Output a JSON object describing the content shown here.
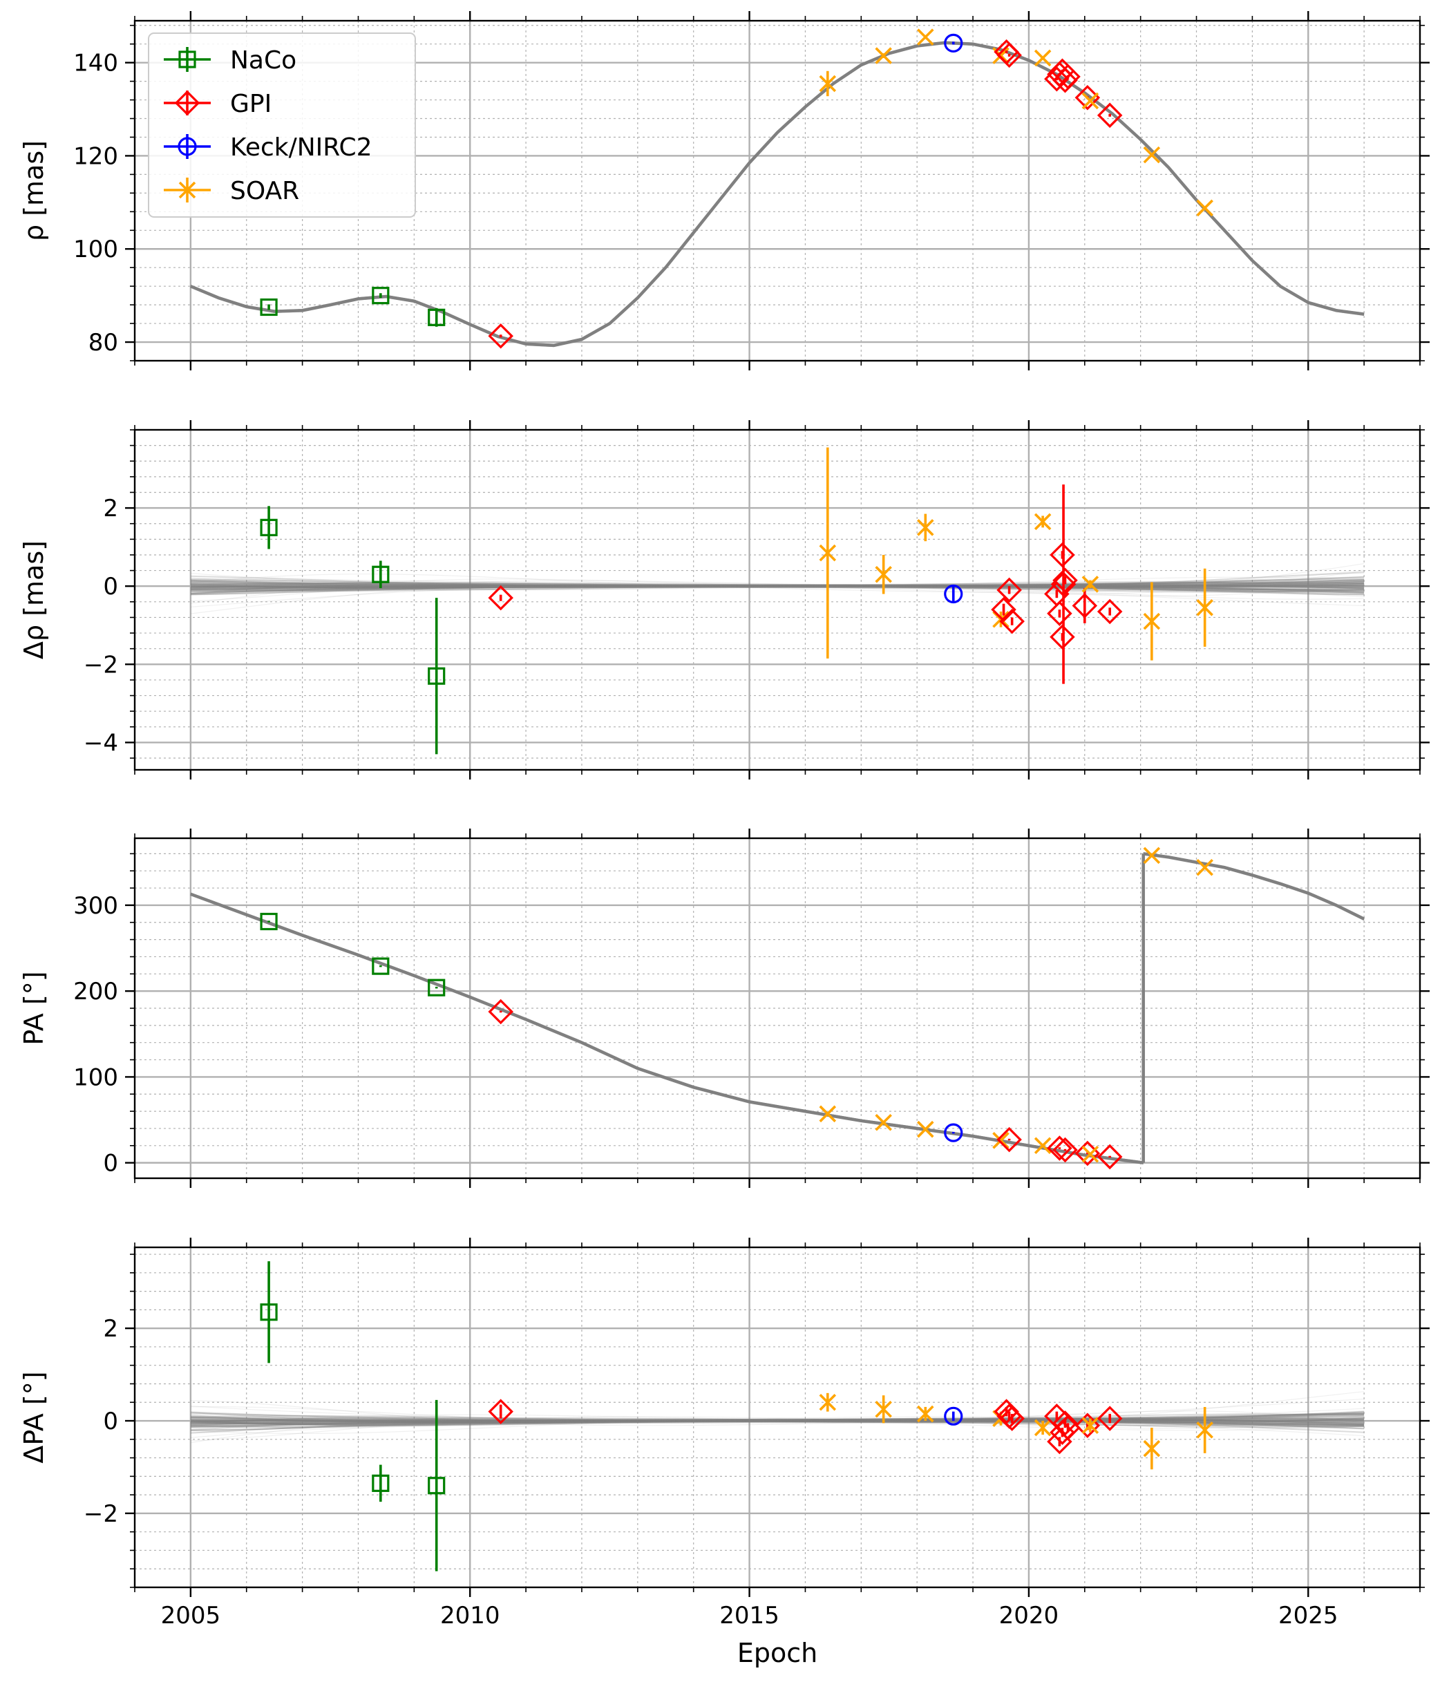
{
  "chart_data": {
    "type": "scatter",
    "xlabel": "Epoch",
    "xlim": [
      2004,
      2027
    ],
    "xticks": [
      2005,
      2010,
      2015,
      2020,
      2025
    ],
    "colors": {
      "NaCo": "#008000",
      "GPI": "#ff0000",
      "Keck/NIRC2": "#0000ff",
      "SOAR": "#ffa500",
      "model": "#808080",
      "grid": "#b0b0b0"
    },
    "legend": {
      "placement": "upper-left of top panel",
      "entries": [
        {
          "name": "NaCo",
          "marker": "square",
          "color": "#008000"
        },
        {
          "name": "GPI",
          "marker": "diamond",
          "color": "#ff0000"
        },
        {
          "name": "Keck/NIRC2",
          "marker": "circle",
          "color": "#0000ff"
        },
        {
          "name": "SOAR",
          "marker": "x",
          "color": "#ffa500"
        }
      ]
    },
    "panels": [
      {
        "id": "rho",
        "ylabel": "ρ [mas]",
        "ylim": [
          76,
          149
        ],
        "yticks": [
          80,
          100,
          120,
          140
        ],
        "model": [
          [
            2005,
            92
          ],
          [
            2005.5,
            89.5
          ],
          [
            2006,
            87.6
          ],
          [
            2006.5,
            86.6
          ],
          [
            2007,
            86.8
          ],
          [
            2007.5,
            88
          ],
          [
            2008,
            89.3
          ],
          [
            2008.5,
            89.8
          ],
          [
            2009,
            88.8
          ],
          [
            2009.5,
            86.5
          ],
          [
            2010,
            83.8
          ],
          [
            2010.5,
            81.2
          ],
          [
            2011,
            79.6
          ],
          [
            2011.5,
            79.3
          ],
          [
            2012,
            80.6
          ],
          [
            2012.5,
            84
          ],
          [
            2013,
            89.5
          ],
          [
            2013.5,
            96
          ],
          [
            2014,
            103.5
          ],
          [
            2014.5,
            111
          ],
          [
            2015,
            118.5
          ],
          [
            2015.5,
            125
          ],
          [
            2016,
            130.5
          ],
          [
            2016.5,
            135.5
          ],
          [
            2017,
            139.5
          ],
          [
            2017.5,
            142
          ],
          [
            2018,
            143.6
          ],
          [
            2018.5,
            144.3
          ],
          [
            2019,
            144
          ],
          [
            2019.5,
            142.8
          ],
          [
            2020,
            140.5
          ],
          [
            2020.5,
            137.5
          ],
          [
            2021,
            133.5
          ],
          [
            2021.5,
            129
          ],
          [
            2022,
            123.5
          ],
          [
            2022.5,
            117.5
          ],
          [
            2023,
            110.5
          ],
          [
            2023.5,
            104
          ],
          [
            2024,
            97.5
          ],
          [
            2024.5,
            92
          ],
          [
            2025,
            88.5
          ],
          [
            2025.5,
            86.8
          ],
          [
            2026,
            86
          ]
        ],
        "points": [
          {
            "inst": "NaCo",
            "x": 2006.4,
            "y": 87.5,
            "err": 0.6
          },
          {
            "inst": "NaCo",
            "x": 2008.4,
            "y": 90,
            "err": 0.5
          },
          {
            "inst": "NaCo",
            "x": 2009.4,
            "y": 85.3,
            "err": 2
          },
          {
            "inst": "GPI",
            "x": 2010.55,
            "y": 81.3,
            "err": 0.3
          },
          {
            "inst": "SOAR",
            "x": 2016.4,
            "y": 135.5,
            "err": 2.7
          },
          {
            "inst": "SOAR",
            "x": 2017.4,
            "y": 141.5,
            "err": 0.5
          },
          {
            "inst": "SOAR",
            "x": 2018.15,
            "y": 145.5,
            "err": 0.4
          },
          {
            "inst": "Keck/NIRC2",
            "x": 2018.65,
            "y": 144.2,
            "err": 0.3
          },
          {
            "inst": "SOAR",
            "x": 2019.5,
            "y": 141.5,
            "err": 0.3
          },
          {
            "inst": "GPI",
            "x": 2019.6,
            "y": 142.3,
            "err": 0.3
          },
          {
            "inst": "GPI",
            "x": 2019.65,
            "y": 141.6,
            "err": 0.3
          },
          {
            "inst": "SOAR",
            "x": 2020.25,
            "y": 141,
            "err": 0.3
          },
          {
            "inst": "GPI",
            "x": 2020.5,
            "y": 136.5,
            "err": 0.3
          },
          {
            "inst": "GPI",
            "x": 2020.55,
            "y": 137.5,
            "err": 0.3
          },
          {
            "inst": "GPI",
            "x": 2020.6,
            "y": 138.2,
            "err": 0.3
          },
          {
            "inst": "GPI",
            "x": 2020.65,
            "y": 136.2,
            "err": 0.3
          },
          {
            "inst": "GPI",
            "x": 2020.7,
            "y": 137,
            "err": 0.3
          },
          {
            "inst": "GPI",
            "x": 2021.05,
            "y": 132.5,
            "err": 0.3
          },
          {
            "inst": "SOAR",
            "x": 2021.1,
            "y": 131.8,
            "err": 0.3
          },
          {
            "inst": "GPI",
            "x": 2021.45,
            "y": 128.7,
            "err": 0.3
          },
          {
            "inst": "SOAR",
            "x": 2022.2,
            "y": 120.2,
            "err": 0.4
          },
          {
            "inst": "SOAR",
            "x": 2023.15,
            "y": 108.8,
            "err": 0.3
          }
        ]
      },
      {
        "id": "drho",
        "ylabel": "Δρ [mas]",
        "ylim": [
          -4.7,
          4
        ],
        "yticks": [
          -4,
          -2,
          0,
          2
        ],
        "residual": true,
        "points": [
          {
            "inst": "NaCo",
            "x": 2006.4,
            "y": 1.5,
            "err": 0.55
          },
          {
            "inst": "NaCo",
            "x": 2008.4,
            "y": 0.3,
            "err": 0.35
          },
          {
            "inst": "NaCo",
            "x": 2009.4,
            "y": -2.3,
            "err": 2
          },
          {
            "inst": "GPI",
            "x": 2010.55,
            "y": -0.3,
            "err": 0.08
          },
          {
            "inst": "SOAR",
            "x": 2016.4,
            "y": 0.85,
            "err": 2.7
          },
          {
            "inst": "SOAR",
            "x": 2017.4,
            "y": 0.3,
            "err": 0.5
          },
          {
            "inst": "SOAR",
            "x": 2018.15,
            "y": 1.5,
            "err": 0.35
          },
          {
            "inst": "Keck/NIRC2",
            "x": 2018.65,
            "y": -0.2,
            "err": 0.2
          },
          {
            "inst": "SOAR",
            "x": 2019.5,
            "y": -0.85,
            "err": 0.2
          },
          {
            "inst": "GPI",
            "x": 2019.55,
            "y": -0.6,
            "err": 0.15
          },
          {
            "inst": "GPI",
            "x": 2019.65,
            "y": -0.1,
            "err": 0.1
          },
          {
            "inst": "GPI",
            "x": 2019.7,
            "y": -0.9,
            "err": 0.1
          },
          {
            "inst": "SOAR",
            "x": 2020.25,
            "y": 1.65,
            "err": 0.15
          },
          {
            "inst": "GPI",
            "x": 2020.5,
            "y": -0.2,
            "err": 0.1
          },
          {
            "inst": "GPI",
            "x": 2020.55,
            "y": -0.7,
            "err": 0.1
          },
          {
            "inst": "GPI",
            "x": 2020.6,
            "y": 0.8,
            "err": 0.1
          },
          {
            "inst": "GPI",
            "x": 2020.6,
            "y": -1.3,
            "err": 0.1
          },
          {
            "inst": "GPI",
            "x": 2020.62,
            "y": 0.05,
            "err": 2.55
          },
          {
            "inst": "GPI",
            "x": 2020.65,
            "y": 0.15,
            "err": 0.1
          },
          {
            "inst": "GPI",
            "x": 2021.0,
            "y": -0.5,
            "err": 0.45
          },
          {
            "inst": "SOAR",
            "x": 2021.1,
            "y": 0.05,
            "err": 0.1
          },
          {
            "inst": "GPI",
            "x": 2021.45,
            "y": -0.65,
            "err": 0.1
          },
          {
            "inst": "SOAR",
            "x": 2022.2,
            "y": -0.9,
            "err": 1
          },
          {
            "inst": "SOAR",
            "x": 2023.15,
            "y": -0.55,
            "err": 1
          }
        ]
      },
      {
        "id": "pa",
        "ylabel": "PA [°]",
        "ylim": [
          -18,
          378
        ],
        "yticks": [
          0,
          100,
          200,
          300
        ],
        "model": [
          [
            2005,
            313
          ],
          [
            2006,
            289
          ],
          [
            2007,
            265
          ],
          [
            2008,
            242
          ],
          [
            2009,
            218
          ],
          [
            2010,
            193
          ],
          [
            2011,
            167
          ],
          [
            2012,
            140
          ],
          [
            2013,
            110
          ],
          [
            2014,
            88
          ],
          [
            2015,
            71
          ],
          [
            2016,
            60
          ],
          [
            2017,
            49
          ],
          [
            2018,
            40
          ],
          [
            2019,
            31
          ],
          [
            2020,
            20
          ],
          [
            2021,
            9
          ],
          [
            2021.7,
            3
          ],
          [
            2022.05,
            0
          ],
          [
            null,
            null
          ],
          [
            2022.05,
            360
          ],
          [
            2022.5,
            356
          ],
          [
            2023,
            350
          ],
          [
            2023.5,
            344
          ],
          [
            2024,
            335
          ],
          [
            2024.5,
            325
          ],
          [
            2025,
            314
          ],
          [
            2025.5,
            300
          ],
          [
            2026,
            284
          ]
        ],
        "jump": {
          "x": 2022.05,
          "from": 0,
          "to": 360
        },
        "points": [
          {
            "inst": "NaCo",
            "x": 2006.4,
            "y": 281,
            "err": 1
          },
          {
            "inst": "NaCo",
            "x": 2008.4,
            "y": 229,
            "err": 1
          },
          {
            "inst": "NaCo",
            "x": 2009.4,
            "y": 204,
            "err": 1
          },
          {
            "inst": "GPI",
            "x": 2010.55,
            "y": 176,
            "err": 1
          },
          {
            "inst": "SOAR",
            "x": 2016.4,
            "y": 57,
            "err": 1
          },
          {
            "inst": "SOAR",
            "x": 2017.4,
            "y": 47,
            "err": 1
          },
          {
            "inst": "SOAR",
            "x": 2018.15,
            "y": 39,
            "err": 1
          },
          {
            "inst": "Keck/NIRC2",
            "x": 2018.65,
            "y": 35,
            "err": 1
          },
          {
            "inst": "SOAR",
            "x": 2019.5,
            "y": 26,
            "err": 1
          },
          {
            "inst": "GPI",
            "x": 2019.65,
            "y": 27,
            "err": 1
          },
          {
            "inst": "SOAR",
            "x": 2020.25,
            "y": 20,
            "err": 1
          },
          {
            "inst": "GPI",
            "x": 2020.55,
            "y": 17,
            "err": 1
          },
          {
            "inst": "GPI",
            "x": 2020.65,
            "y": 15,
            "err": 1
          },
          {
            "inst": "GPI",
            "x": 2021.05,
            "y": 11,
            "err": 1
          },
          {
            "inst": "SOAR",
            "x": 2021.1,
            "y": 10,
            "err": 1
          },
          {
            "inst": "GPI",
            "x": 2021.45,
            "y": 7,
            "err": 1
          },
          {
            "inst": "SOAR",
            "x": 2022.2,
            "y": 358,
            "err": 1
          },
          {
            "inst": "SOAR",
            "x": 2023.15,
            "y": 344,
            "err": 1
          }
        ]
      },
      {
        "id": "dpa",
        "ylabel": "ΔPA [°]",
        "ylim": [
          -3.6,
          3.75
        ],
        "yticks": [
          -2,
          0,
          2
        ],
        "residual": true,
        "points": [
          {
            "inst": "NaCo",
            "x": 2006.4,
            "y": 2.35,
            "err": 1.1
          },
          {
            "inst": "NaCo",
            "x": 2008.4,
            "y": -1.35,
            "err": 0.4
          },
          {
            "inst": "NaCo",
            "x": 2009.4,
            "y": -1.4,
            "err": 1.85
          },
          {
            "inst": "GPI",
            "x": 2010.55,
            "y": 0.2,
            "err": 0.15
          },
          {
            "inst": "SOAR",
            "x": 2016.4,
            "y": 0.4,
            "err": 0.2
          },
          {
            "inst": "SOAR",
            "x": 2017.4,
            "y": 0.25,
            "err": 0.3
          },
          {
            "inst": "SOAR",
            "x": 2018.15,
            "y": 0.15,
            "err": 0.15
          },
          {
            "inst": "Keck/NIRC2",
            "x": 2018.65,
            "y": 0.1,
            "err": 0.1
          },
          {
            "inst": "SOAR",
            "x": 2019.5,
            "y": 0.05,
            "err": 0.15
          },
          {
            "inst": "GPI",
            "x": 2019.6,
            "y": 0.2,
            "err": 0.1
          },
          {
            "inst": "GPI",
            "x": 2019.65,
            "y": 0.1,
            "err": 0.1
          },
          {
            "inst": "GPI",
            "x": 2019.7,
            "y": 0.05,
            "err": 0.1
          },
          {
            "inst": "SOAR",
            "x": 2020.25,
            "y": -0.15,
            "err": 0.15
          },
          {
            "inst": "GPI",
            "x": 2020.5,
            "y": 0.1,
            "err": 0.1
          },
          {
            "inst": "GPI",
            "x": 2020.55,
            "y": -0.45,
            "err": 0.1
          },
          {
            "inst": "GPI",
            "x": 2020.6,
            "y": -0.25,
            "err": 0.1
          },
          {
            "inst": "GPI",
            "x": 2020.65,
            "y": -0.05,
            "err": 0.1
          },
          {
            "inst": "GPI",
            "x": 2020.7,
            "y": -0.15,
            "err": 0.1
          },
          {
            "inst": "GPI",
            "x": 2021.05,
            "y": -0.1,
            "err": 0.1
          },
          {
            "inst": "SOAR",
            "x": 2021.1,
            "y": -0.1,
            "err": 0.15
          },
          {
            "inst": "GPI",
            "x": 2021.45,
            "y": 0.05,
            "err": 0.1
          },
          {
            "inst": "SOAR",
            "x": 2022.2,
            "y": -0.6,
            "err": 0.45
          },
          {
            "inst": "SOAR",
            "x": 2023.15,
            "y": -0.2,
            "err": 0.5
          }
        ]
      }
    ]
  }
}
